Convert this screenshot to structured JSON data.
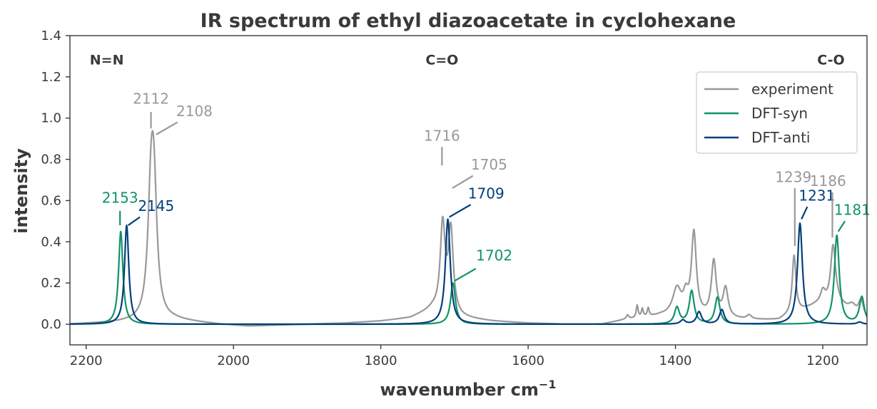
{
  "colors": {
    "experiment": "#999999",
    "syn": "#11936a",
    "anti": "#003f7f",
    "axis": "#3a3a3a",
    "text": "#3a3a3a"
  },
  "chart_data": {
    "type": "line",
    "title": "IR spectrum of ethyl diazoacetate in cyclohexane",
    "xlabel": "wavenumber cm",
    "xlabel_sup": "−1",
    "ylabel": "intensity",
    "xlim": [
      2222,
      1140
    ],
    "ylim": [
      -0.1,
      1.4
    ],
    "x_reversed": true,
    "grid": false,
    "legend_position": "top-right",
    "x_ticks": [
      2200,
      2000,
      1800,
      1600,
      1400,
      1200
    ],
    "x_tick_labels": [
      "2200",
      "2000",
      "1800",
      "1600",
      "1400",
      "1200"
    ],
    "y_ticks": [
      0.0,
      0.2,
      0.4,
      0.6,
      0.8,
      1.0,
      1.2,
      1.4
    ],
    "y_tick_labels": [
      "0.0",
      "0.2",
      "0.4",
      "0.6",
      "0.8",
      "1.0",
      "1.2",
      "1.4"
    ],
    "region_labels": [
      {
        "text": "N=N",
        "x": 2172,
        "y": 1.26
      },
      {
        "text": "C=O",
        "x": 1717,
        "y": 1.26
      },
      {
        "text": "C-O",
        "x": 1189,
        "y": 1.26
      }
    ],
    "series": [
      {
        "name": "experiment",
        "color_key": "experiment",
        "baseline": [
          [
            2222,
            0.0
          ],
          [
            2150,
            0.01
          ],
          [
            2080,
            0.02
          ],
          [
            2020,
            0.0
          ],
          [
            1980,
            -0.01
          ],
          [
            1940,
            -0.005
          ],
          [
            1900,
            0.0
          ],
          [
            1850,
            0.005
          ],
          [
            1800,
            0.015
          ],
          [
            1760,
            0.03
          ],
          [
            1730,
            0.07
          ],
          [
            1690,
            0.03
          ],
          [
            1650,
            0.015
          ],
          [
            1600,
            0.005
          ],
          [
            1550,
            0.0
          ],
          [
            1500,
            0.0
          ],
          [
            1470,
            0.02
          ],
          [
            1420,
            0.04
          ],
          [
            1300,
            0.02
          ],
          [
            1260,
            0.02
          ],
          [
            1240,
            0.05
          ],
          [
            1210,
            0.09
          ],
          [
            1180,
            0.1
          ],
          [
            1160,
            0.05
          ],
          [
            1140,
            0.02
          ]
        ],
        "peaks": [
          {
            "center": 2112,
            "height": 0.52,
            "width": 5
          },
          {
            "center": 2108,
            "height": 0.55,
            "width": 5
          },
          {
            "center": 1716,
            "height": 0.42,
            "width": 4
          },
          {
            "center": 1705,
            "height": 0.4,
            "width": 4
          },
          {
            "center": 1465,
            "height": 0.02,
            "width": 2
          },
          {
            "center": 1452,
            "height": 0.06,
            "width": 1.5
          },
          {
            "center": 1445,
            "height": 0.04,
            "width": 1.5
          },
          {
            "center": 1437,
            "height": 0.04,
            "width": 1.5
          },
          {
            "center": 1398,
            "height": 0.13,
            "width": 7
          },
          {
            "center": 1386,
            "height": 0.08,
            "width": 4
          },
          {
            "center": 1375,
            "height": 0.4,
            "width": 4
          },
          {
            "center": 1348,
            "height": 0.27,
            "width": 4
          },
          {
            "center": 1332,
            "height": 0.14,
            "width": 4
          },
          {
            "center": 1300,
            "height": 0.02,
            "width": 4
          },
          {
            "center": 1239,
            "height": 0.28,
            "width": 3
          },
          {
            "center": 1200,
            "height": 0.06,
            "width": 4
          },
          {
            "center": 1186,
            "height": 0.28,
            "width": 4
          },
          {
            "center": 1160,
            "height": 0.04,
            "width": 6
          },
          {
            "center": 1148,
            "height": 0.08,
            "width": 4
          }
        ]
      },
      {
        "name": "DFT-syn",
        "color_key": "syn",
        "baseline": [
          [
            2222,
            0.0
          ],
          [
            1140,
            0.0
          ]
        ],
        "peaks": [
          {
            "center": 2153,
            "height": 0.45,
            "width": 3.5
          },
          {
            "center": 1702,
            "height": 0.2,
            "width": 4
          },
          {
            "center": 1398,
            "height": 0.08,
            "width": 4
          },
          {
            "center": 1378,
            "height": 0.16,
            "width": 4
          },
          {
            "center": 1343,
            "height": 0.13,
            "width": 4
          },
          {
            "center": 1181,
            "height": 0.43,
            "width": 4
          },
          {
            "center": 1147,
            "height": 0.13,
            "width": 4
          }
        ]
      },
      {
        "name": "DFT-anti",
        "color_key": "anti",
        "baseline": [
          [
            2222,
            0.0
          ],
          [
            1140,
            0.0
          ]
        ],
        "peaks": [
          {
            "center": 2145,
            "height": 0.48,
            "width": 3.5
          },
          {
            "center": 1709,
            "height": 0.51,
            "width": 4
          },
          {
            "center": 1390,
            "height": 0.02,
            "width": 4
          },
          {
            "center": 1368,
            "height": 0.06,
            "width": 4
          },
          {
            "center": 1337,
            "height": 0.07,
            "width": 4
          },
          {
            "center": 1231,
            "height": 0.49,
            "width": 4
          },
          {
            "center": 1150,
            "height": 0.01,
            "width": 4
          }
        ]
      }
    ],
    "annotations": [
      {
        "text": "2112",
        "color_key": "experiment",
        "x0": 2112,
        "y0": 0.95,
        "x1": 2112,
        "y1": 1.03,
        "tx": 2112,
        "ty": 1.07,
        "anchor": "middle"
      },
      {
        "text": "2108",
        "color_key": "experiment",
        "x0": 2105,
        "y0": 0.92,
        "x1": 2076,
        "y1": 0.98,
        "tx": 2053,
        "ty": 1.01,
        "anchor": "middle"
      },
      {
        "text": "1716",
        "color_key": "experiment",
        "x0": 1717,
        "y0": 0.77,
        "x1": 1717,
        "y1": 0.86,
        "tx": 1717,
        "ty": 0.89,
        "anchor": "middle"
      },
      {
        "text": "1705",
        "color_key": "experiment",
        "x0": 1703,
        "y0": 0.66,
        "x1": 1675,
        "y1": 0.72,
        "tx": 1653,
        "ty": 0.75,
        "anchor": "middle"
      },
      {
        "text": "2153",
        "color_key": "syn",
        "x0": 2154,
        "y0": 0.48,
        "x1": 2154,
        "y1": 0.55,
        "tx": 2154,
        "ty": 0.59,
        "anchor": "middle"
      },
      {
        "text": "2145",
        "color_key": "anti",
        "x0": 2143,
        "y0": 0.48,
        "x1": 2127,
        "y1": 0.52,
        "tx": 2105,
        "ty": 0.55,
        "anchor": "middle"
      },
      {
        "text": "1709",
        "color_key": "anti",
        "x0": 1707,
        "y0": 0.52,
        "x1": 1678,
        "y1": 0.58,
        "tx": 1657,
        "ty": 0.61,
        "anchor": "middle"
      },
      {
        "text": "1702",
        "color_key": "syn",
        "x0": 1700,
        "y0": 0.21,
        "x1": 1671,
        "y1": 0.27,
        "tx": 1646,
        "ty": 0.31,
        "anchor": "middle"
      },
      {
        "text": "1239",
        "color_key": "experiment",
        "x0": 1238,
        "y0": 0.38,
        "x1": 1238,
        "y1": 0.66,
        "tx": 1240,
        "ty": 0.69,
        "anchor": "middle"
      },
      {
        "text": "1231",
        "color_key": "anti",
        "x0": 1229,
        "y0": 0.51,
        "x1": 1221,
        "y1": 0.57,
        "tx": 1208,
        "ty": 0.6,
        "anchor": "middle"
      },
      {
        "text": "1186",
        "color_key": "experiment",
        "x0": 1187,
        "y0": 0.42,
        "x1": 1187,
        "y1": 0.64,
        "tx": 1193,
        "ty": 0.67,
        "anchor": "middle"
      },
      {
        "text": "1181",
        "color_key": "syn",
        "x0": 1179,
        "y0": 0.45,
        "x1": 1170,
        "y1": 0.5,
        "tx": 1160,
        "ty": 0.53,
        "anchor": "middle"
      }
    ]
  }
}
